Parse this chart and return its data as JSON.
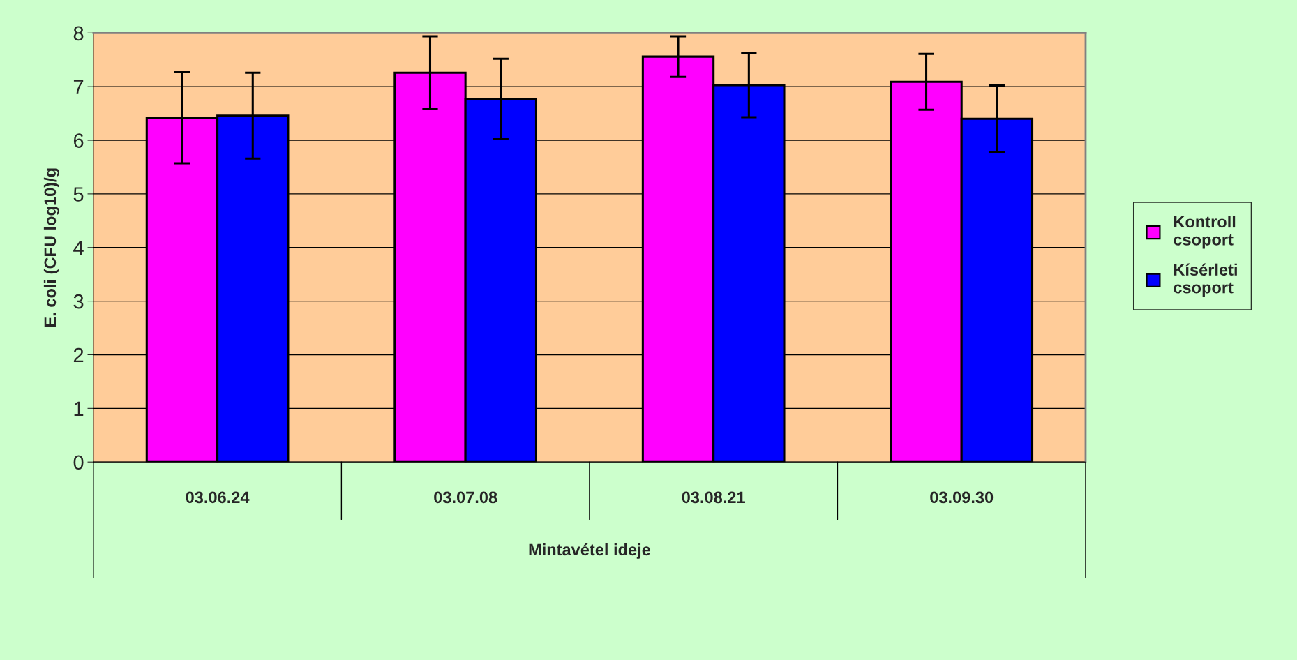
{
  "chart_data": {
    "type": "bar",
    "xlabel": "Mintavétel ideje",
    "ylabel": "E. coli (CFU log10)/g",
    "categories": [
      "03.06.24",
      "03.07.08",
      "03.08.21",
      "03.09.30"
    ],
    "series": [
      {
        "name": "Kontroll\ncsoport",
        "color": "#ff00ff",
        "values": [
          6.42,
          7.26,
          7.56,
          7.09
        ],
        "errors": [
          0.85,
          0.68,
          0.38,
          0.52
        ]
      },
      {
        "name": "Kísérleti\ncsoport",
        "color": "#0000ff",
        "values": [
          6.46,
          6.77,
          7.03,
          6.4
        ],
        "errors": [
          0.8,
          0.75,
          0.6,
          0.62
        ]
      }
    ],
    "ylim": [
      0,
      8
    ],
    "yticks": [
      0,
      1,
      2,
      3,
      4,
      5,
      6,
      7,
      8
    ],
    "grid": "y",
    "legend": "right"
  }
}
